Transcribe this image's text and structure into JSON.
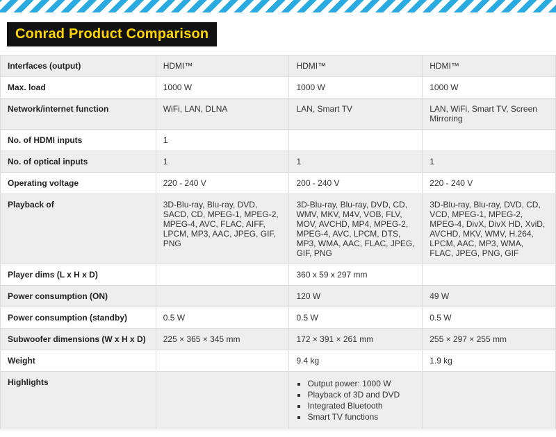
{
  "title": "Conrad Product Comparison",
  "colors": {
    "hatch_a": "#29abe2",
    "hatch_b": "#ffffff",
    "title_bg": "#111111",
    "title_fg": "#ffd400",
    "band_bg": "#eeeeee",
    "plain_bg": "#ffffff",
    "border": "#dddddd"
  },
  "table": {
    "columns": [
      "label",
      "product1",
      "product2",
      "product3"
    ],
    "column_widths_pct": [
      28,
      24,
      24,
      24
    ],
    "rows": [
      {
        "band": true,
        "label": "Interfaces (output)",
        "cells": [
          "HDMI™",
          "HDMI™",
          "HDMI™"
        ]
      },
      {
        "band": false,
        "label": "Max. load",
        "cells": [
          "1000 W",
          "1000 W",
          "1000 W"
        ]
      },
      {
        "band": true,
        "label": "Network/internet function",
        "cells": [
          "WiFi, LAN, DLNA",
          "LAN, Smart TV",
          "LAN, WiFi, Smart TV, Screen Mirroring"
        ]
      },
      {
        "band": false,
        "label": "No. of HDMI inputs",
        "cells": [
          "1",
          "",
          ""
        ]
      },
      {
        "band": true,
        "label": "No. of optical inputs",
        "cells": [
          "1",
          "1",
          "1"
        ]
      },
      {
        "band": false,
        "label": "Operating voltage",
        "cells": [
          "220 - 240 V",
          "200 - 240 V",
          "220 - 240 V"
        ]
      },
      {
        "band": true,
        "label": "Playback of",
        "cells": [
          "3D-Blu-ray, Blu-ray, DVD, SACD, CD, MPEG-1, MPEG-2, MPEG-4, AVC, FLAC, AIFF, LPCM, MP3, AAC, JPEG, GIF, PNG",
          "3D-Blu-ray, Blu-ray, DVD, CD, WMV, MKV, M4V, VOB, FLV, MOV, AVCHD, MP4, MPEG-2, MPEG-4, AVC, LPCM, DTS, MP3, WMA, AAC, FLAC, JPEG, GIF, PNG",
          "3D-Blu-ray, Blu-ray, DVD, CD, VCD, MPEG-1, MPEG-2, MPEG-4, DivX, DivX HD, XviD, AVCHD, MKV, WMV, H.264, LPCM, AAC, MP3, WMA, FLAC, JPEG, PNG, GIF"
        ]
      },
      {
        "band": false,
        "label": "Player dims (L x H x D)",
        "cells": [
          "",
          "360 x 59 x 297 mm",
          ""
        ]
      },
      {
        "band": true,
        "label": "Power consumption (ON)",
        "cells": [
          "",
          "120 W",
          "49 W"
        ]
      },
      {
        "band": false,
        "label": "Power consumption (standby)",
        "cells": [
          "0.5 W",
          "0.5 W",
          "0.5 W"
        ]
      },
      {
        "band": true,
        "label": "Subwoofer dimensions (W x H x D)",
        "cells": [
          "225 × 365 × 345 mm",
          "172 × 391 × 261 mm",
          "255 × 297 × 255 mm"
        ]
      },
      {
        "band": false,
        "label": "Weight",
        "cells": [
          "",
          "9.4 kg",
          "1.9 kg"
        ]
      },
      {
        "band": true,
        "label": "Highlights",
        "cells": [
          "",
          {
            "list": [
              "Output power: 1000 W",
              "Playback of 3D and DVD",
              "Integrated Bluetooth",
              "Smart TV functions"
            ]
          },
          ""
        ]
      }
    ]
  }
}
